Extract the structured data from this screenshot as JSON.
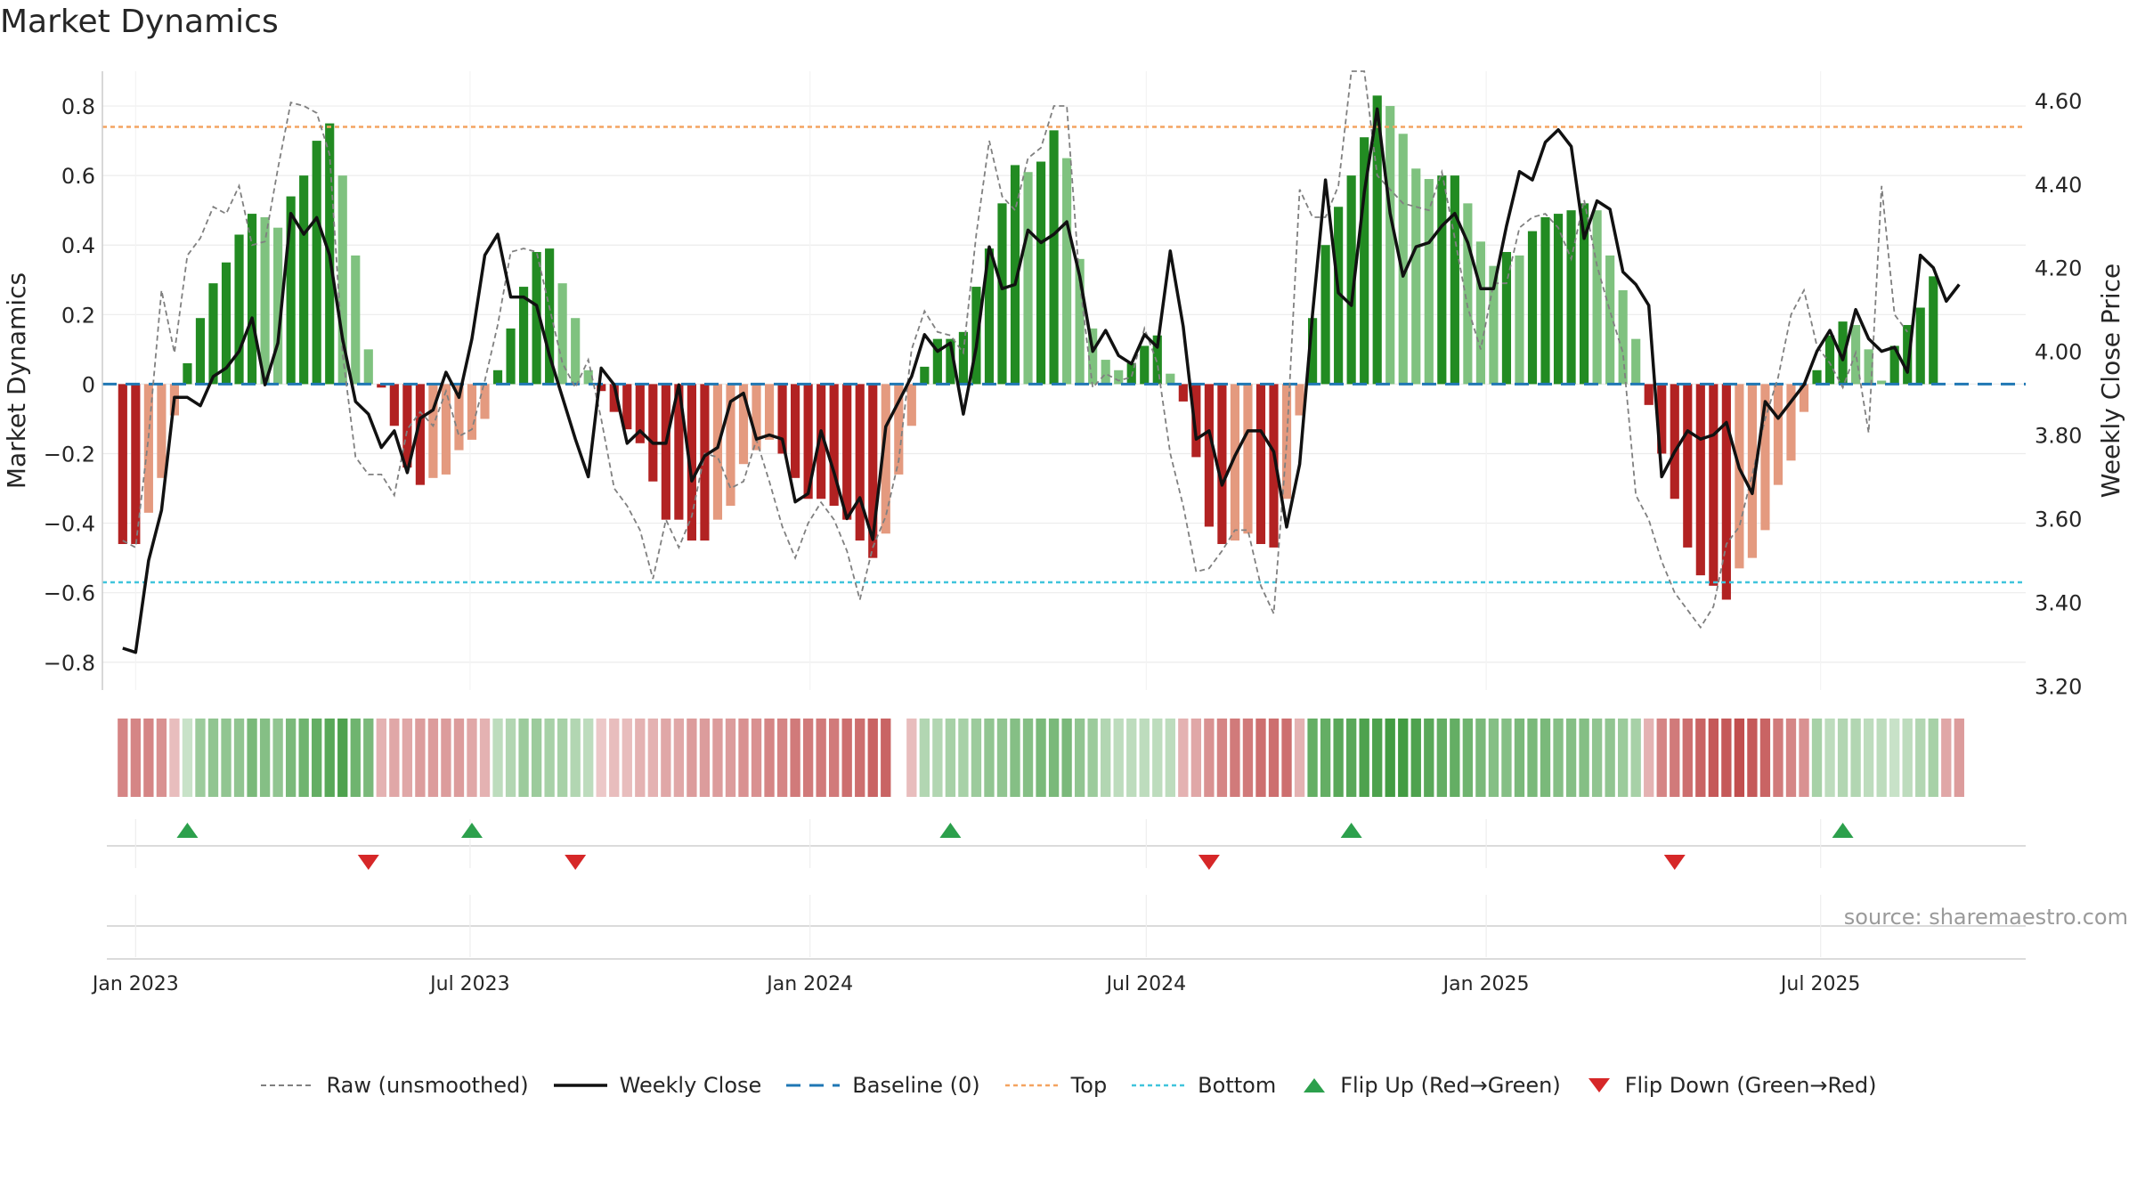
{
  "title": "Market Dynamics",
  "source": "source: sharemaestro.com",
  "colors": {
    "strong_green": "#228B22",
    "light_green": "#7FC27F",
    "strong_red": "#B22222",
    "light_red": "#E49A7F",
    "raw": "#808080",
    "close": "#111111",
    "baseline": "#1f77b4",
    "top": "#F4A460",
    "bottom": "#40C4DC",
    "flip_up": "#2CA04C",
    "flip_down": "#D62728"
  },
  "chart_data": {
    "type": "bar",
    "x_type": "date",
    "ylabel_left": "Market Dynamics",
    "ylabel_right": "Weekly Close Price",
    "ylim_left": [
      -0.88,
      0.9
    ],
    "ylim_right": [
      3.19,
      4.67
    ],
    "y_ticks_left": [
      "−0.8",
      "−0.6",
      "−0.4",
      "−0.2",
      "0",
      "0.2",
      "0.4",
      "0.6",
      "0.8"
    ],
    "y_tick_values_left": [
      -0.8,
      -0.6,
      -0.4,
      -0.2,
      0,
      0.2,
      0.4,
      0.6,
      0.8
    ],
    "y_ticks_right": [
      "3.20",
      "3.40",
      "3.60",
      "3.80",
      "4.00",
      "4.20",
      "4.40",
      "4.60"
    ],
    "y_tick_values_right": [
      3.2,
      3.4,
      3.6,
      3.8,
      4.0,
      4.2,
      4.4,
      4.6
    ],
    "x_ticks": [
      "Jan 2023",
      "Jul 2023",
      "Jan 2024",
      "Jul 2024",
      "Jan 2025",
      "Jul 2025"
    ],
    "x_tick_dates": [
      "2023-01-01",
      "2023-07-01",
      "2024-01-01",
      "2024-07-01",
      "2025-01-01",
      "2025-07-01"
    ],
    "x_range": [
      "2022-12-14",
      "2025-10-20"
    ],
    "top_level": 0.74,
    "bottom_level": -0.57,
    "grid": true,
    "legend_position": "bottom",
    "legend": [
      "Raw (unsmoothed)",
      "Weekly Close",
      "Baseline (0)",
      "Top",
      "Bottom",
      "Flip Up (Red→Green)",
      "Flip Down (Green→Red)"
    ],
    "flips_up": [
      "2023-01-29",
      "2023-07-02",
      "2024-03-17",
      "2024-10-20",
      "2025-07-13"
    ],
    "flips_down": [
      "2023-05-07",
      "2023-08-27",
      "2024-08-04",
      "2025-04-13"
    ],
    "week_start": "2022-12-25",
    "dynamics": [
      -0.46,
      -0.46,
      -0.37,
      -0.27,
      -0.09,
      0.06,
      0.19,
      0.29,
      0.35,
      0.43,
      0.49,
      0.48,
      0.45,
      0.54,
      0.6,
      0.7,
      0.75,
      0.6,
      0.37,
      0.1,
      -0.01,
      -0.12,
      -0.24,
      -0.29,
      -0.27,
      -0.26,
      -0.19,
      -0.16,
      -0.1,
      0.04,
      0.16,
      0.28,
      0.38,
      0.39,
      0.29,
      0.19,
      0.04,
      -0.02,
      -0.08,
      -0.13,
      -0.17,
      -0.28,
      -0.39,
      -0.39,
      -0.45,
      -0.45,
      -0.39,
      -0.35,
      -0.23,
      -0.19,
      -0.16,
      -0.2,
      -0.27,
      -0.33,
      -0.33,
      -0.35,
      -0.39,
      -0.45,
      -0.5,
      -0.43,
      -0.26,
      -0.12,
      0.05,
      0.13,
      0.13,
      0.15,
      0.28,
      0.39,
      0.52,
      0.63,
      0.61,
      0.64,
      0.73,
      0.65,
      0.36,
      0.16,
      0.07,
      0.04,
      0.06,
      0.11,
      0.14,
      0.03,
      -0.05,
      -0.21,
      -0.41,
      -0.46,
      -0.45,
      -0.43,
      -0.46,
      -0.47,
      -0.33,
      -0.09,
      0.19,
      0.4,
      0.51,
      0.6,
      0.71,
      0.83,
      0.8,
      0.72,
      0.62,
      0.59,
      0.6,
      0.6,
      0.52,
      0.41,
      0.34,
      0.38,
      0.37,
      0.44,
      0.48,
      0.49,
      0.5,
      0.52,
      0.5,
      0.37,
      0.27,
      0.13,
      -0.06,
      -0.2,
      -0.33,
      -0.47,
      -0.55,
      -0.58,
      -0.62,
      -0.53,
      -0.5,
      -0.42,
      -0.29,
      -0.22,
      -0.08,
      0.04,
      0.14,
      0.18,
      0.17,
      0.1,
      0.01,
      0.11,
      0.17,
      0.22,
      0.31
    ],
    "raw": [
      -0.45,
      -0.47,
      -0.15,
      0.27,
      0.09,
      0.37,
      0.42,
      0.51,
      0.49,
      0.57,
      0.4,
      0.41,
      0.62,
      0.81,
      0.8,
      0.78,
      0.66,
      0.09,
      -0.21,
      -0.26,
      -0.26,
      -0.32,
      -0.13,
      -0.08,
      -0.12,
      -0.02,
      -0.15,
      -0.13,
      0.01,
      0.17,
      0.38,
      0.39,
      0.38,
      0.22,
      0.06,
      -0.01,
      0.07,
      -0.1,
      -0.3,
      -0.35,
      -0.42,
      -0.56,
      -0.39,
      -0.47,
      -0.38,
      -0.2,
      -0.21,
      -0.3,
      -0.28,
      -0.16,
      -0.28,
      -0.41,
      -0.5,
      -0.4,
      -0.34,
      -0.39,
      -0.48,
      -0.62,
      -0.47,
      -0.38,
      -0.22,
      0.1,
      0.21,
      0.15,
      0.14,
      0.09,
      0.43,
      0.7,
      0.54,
      0.5,
      0.65,
      0.68,
      0.8,
      0.8,
      0.29,
      -0.01,
      0.03,
      0.01,
      0.02,
      0.16,
      0.06,
      -0.2,
      -0.35,
      -0.54,
      -0.53,
      -0.48,
      -0.42,
      -0.42,
      -0.58,
      -0.66,
      -0.17,
      0.56,
      0.48,
      0.48,
      0.57,
      0.9,
      0.9,
      0.6,
      0.56,
      0.52,
      0.51,
      0.5,
      0.61,
      0.42,
      0.22,
      0.1,
      0.29,
      0.29,
      0.45,
      0.48,
      0.49,
      0.45,
      0.36,
      0.53,
      0.34,
      0.21,
      0.09,
      -0.32,
      -0.39,
      -0.51,
      -0.6,
      -0.65,
      -0.7,
      -0.64,
      -0.46,
      -0.41,
      -0.26,
      -0.1,
      0.02,
      0.2,
      0.27,
      0.11,
      0.06,
      -0.01,
      0.09,
      -0.14,
      0.57,
      0.2,
      0.15
    ],
    "close": [
      3.29,
      3.28,
      3.5,
      3.62,
      3.89,
      3.89,
      3.87,
      3.94,
      3.96,
      4.0,
      4.08,
      3.92,
      4.02,
      4.33,
      4.28,
      4.32,
      4.23,
      4.03,
      3.88,
      3.85,
      3.77,
      3.81,
      3.71,
      3.84,
      3.86,
      3.95,
      3.89,
      4.03,
      4.23,
      4.28,
      4.13,
      4.13,
      4.11,
      3.99,
      3.89,
      3.79,
      3.7,
      3.96,
      3.92,
      3.78,
      3.81,
      3.78,
      3.78,
      3.92,
      3.69,
      3.75,
      3.77,
      3.88,
      3.9,
      3.79,
      3.8,
      3.79,
      3.64,
      3.66,
      3.81,
      3.71,
      3.6,
      3.65,
      3.55,
      3.82,
      3.88,
      3.94,
      4.04,
      4.0,
      4.02,
      3.85,
      4.01,
      4.25,
      4.15,
      4.16,
      4.29,
      4.26,
      4.28,
      4.31,
      4.18,
      4.0,
      4.05,
      3.99,
      3.97,
      4.04,
      4.01,
      4.24,
      4.06,
      3.79,
      3.81,
      3.68,
      3.75,
      3.81,
      3.81,
      3.76,
      3.58,
      3.73,
      4.09,
      4.41,
      4.14,
      4.11,
      4.38,
      4.58,
      4.33,
      4.18,
      4.25,
      4.26,
      4.3,
      4.33,
      4.26,
      4.15,
      4.15,
      4.3,
      4.43,
      4.41,
      4.5,
      4.53,
      4.49,
      4.27,
      4.36,
      4.34,
      4.19,
      4.16,
      4.11,
      3.7,
      3.76,
      3.81,
      3.79,
      3.8,
      3.83,
      3.72,
      3.66,
      3.88,
      3.84,
      3.88,
      3.92,
      4.0,
      4.05,
      3.98,
      4.1,
      4.03,
      4.0,
      4.01,
      3.95,
      4.23,
      4.2,
      4.12,
      4.16
    ],
    "regime_strength": [
      0.55,
      0.55,
      0.55,
      0.5,
      0.3,
      0.25,
      0.45,
      0.5,
      0.5,
      0.5,
      0.6,
      0.55,
      0.5,
      0.6,
      0.65,
      0.7,
      0.75,
      0.8,
      0.65,
      0.6,
      0.35,
      0.4,
      0.4,
      0.45,
      0.45,
      0.45,
      0.45,
      0.4,
      0.35,
      0.3,
      0.35,
      0.45,
      0.45,
      0.4,
      0.4,
      0.35,
      0.3,
      0.25,
      0.3,
      0.3,
      0.35,
      0.35,
      0.4,
      0.4,
      0.45,
      0.45,
      0.45,
      0.45,
      0.5,
      0.5,
      0.55,
      0.55,
      0.6,
      0.6,
      0.6,
      0.6,
      0.65,
      0.65,
      0.7,
      0.7,
      null,
      0.3,
      0.35,
      0.35,
      0.4,
      0.4,
      0.45,
      0.5,
      0.5,
      0.55,
      0.55,
      0.6,
      0.6,
      0.6,
      0.5,
      0.45,
      0.35,
      0.3,
      0.3,
      0.3,
      0.3,
      0.3,
      0.35,
      0.4,
      0.5,
      0.55,
      0.6,
      0.6,
      0.65,
      0.65,
      0.65,
      0.35,
      0.7,
      0.7,
      0.75,
      0.75,
      0.8,
      0.8,
      0.85,
      0.85,
      0.8,
      0.75,
      0.7,
      0.7,
      0.65,
      0.6,
      0.55,
      0.55,
      0.6,
      0.6,
      0.6,
      0.55,
      0.55,
      0.55,
      0.5,
      0.5,
      0.45,
      0.4,
      0.35,
      0.55,
      0.6,
      0.65,
      0.7,
      0.75,
      0.75,
      0.8,
      0.75,
      0.7,
      0.6,
      0.55,
      0.5,
      0.4,
      0.3,
      0.35,
      0.35,
      0.3,
      0.3,
      0.25,
      0.3,
      0.35,
      0.4,
      0.4,
      0.45
    ]
  }
}
